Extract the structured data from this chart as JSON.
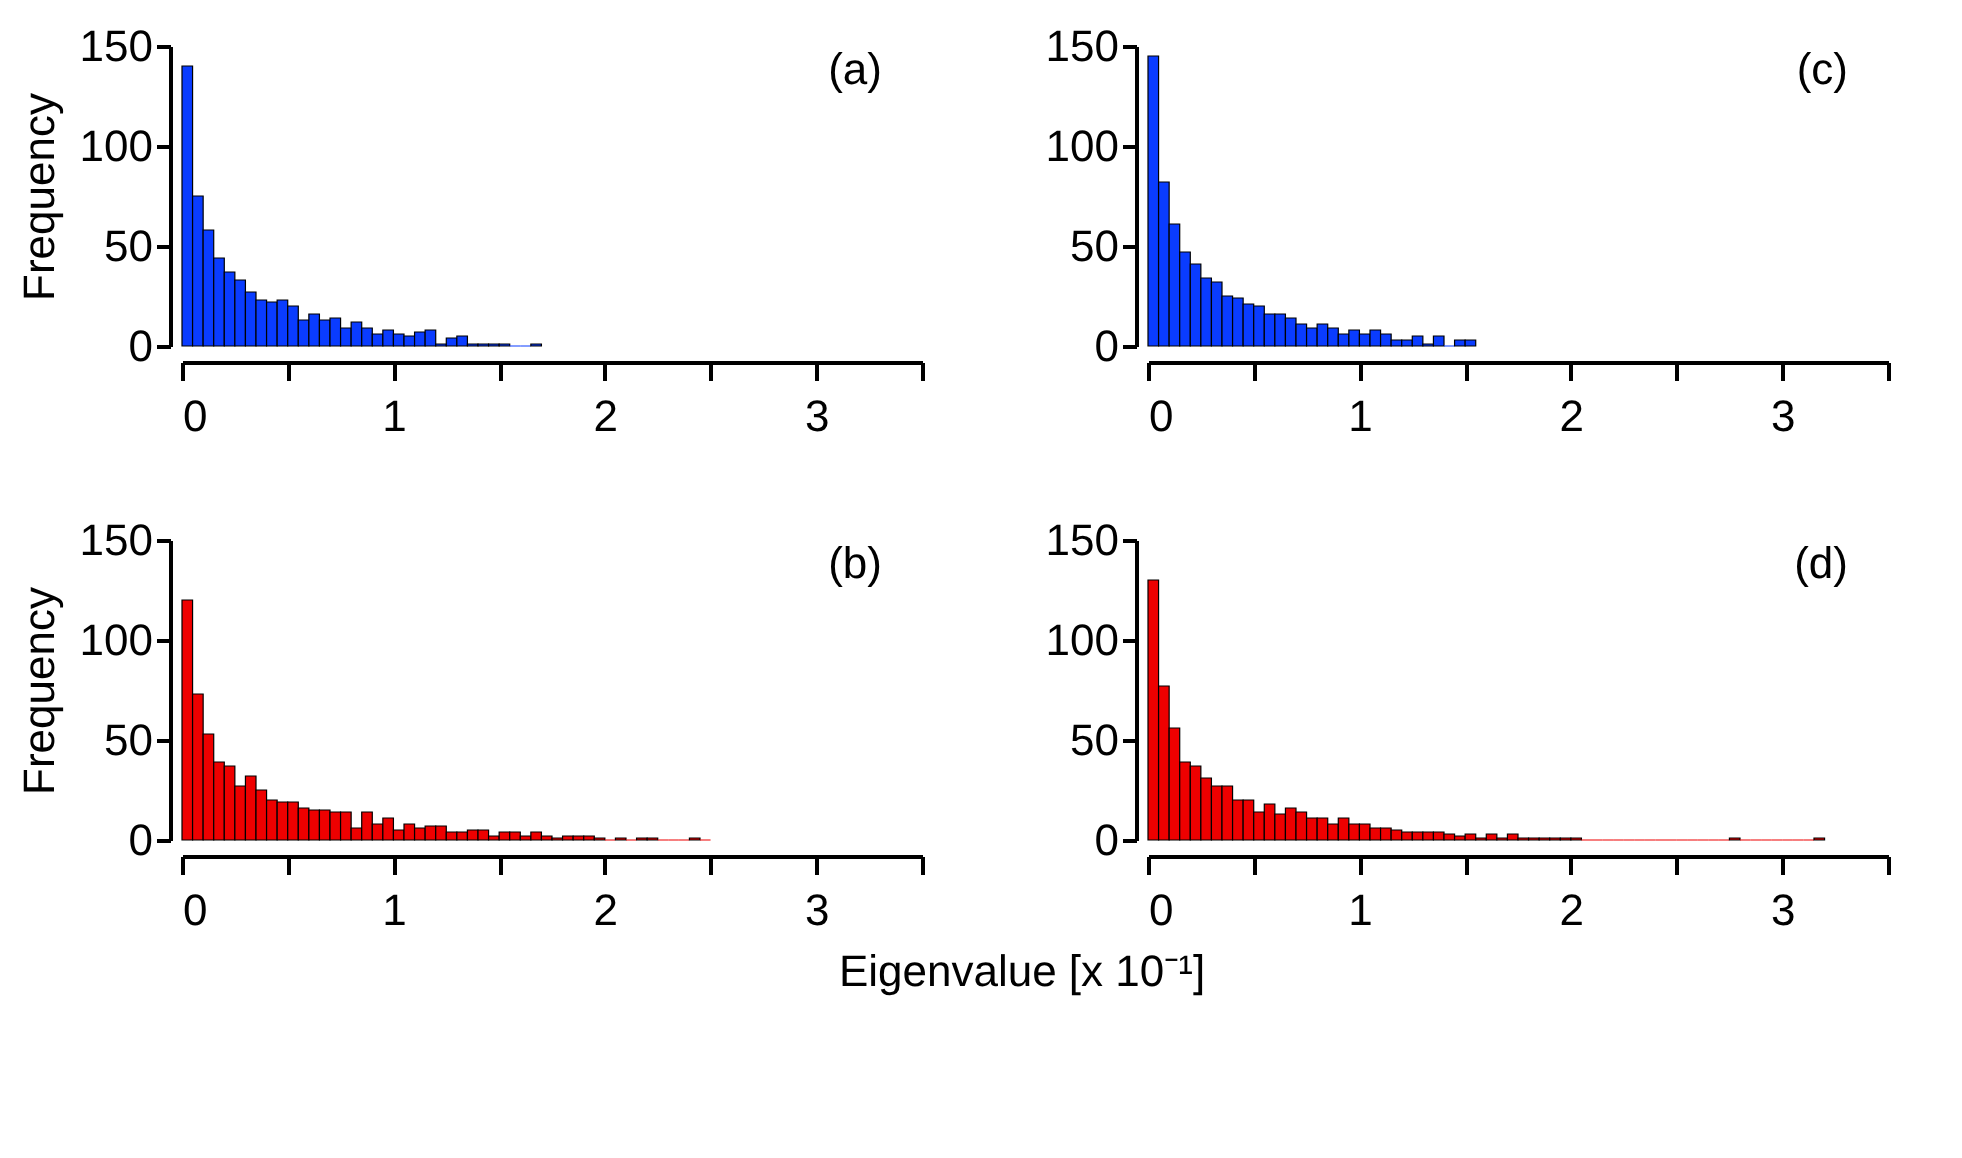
{
  "chart_data": [
    {
      "type": "histogram",
      "ylabel": "Frequency",
      "annotations": [
        "(a)"
      ],
      "color": "#0a3cff",
      "grid": false,
      "bins": [
        0,
        0.05,
        0.1,
        0.15,
        0.2,
        0.25,
        0.3,
        0.35,
        0.4,
        0.45,
        0.5,
        0.55,
        0.6,
        0.65,
        0.7,
        0.75,
        0.8,
        0.85,
        0.9,
        0.95,
        1,
        1.05,
        1.1,
        1.15,
        1.2,
        1.25,
        1.3,
        1.35,
        1.4,
        1.45,
        1.5,
        1.55,
        1.6,
        1.65,
        1.7
      ],
      "values": [
        140,
        75,
        58,
        44,
        37,
        33,
        27,
        23,
        22,
        23,
        20,
        13,
        16,
        13,
        14,
        9,
        12,
        9,
        6,
        8,
        6,
        5,
        7,
        8,
        1,
        4,
        5,
        1,
        1,
        1,
        1,
        0,
        0,
        1
      ],
      "xlim": [
        0,
        3.5
      ],
      "xticks": [
        0,
        {
          "value": 0.5,
          "label": null
        },
        1,
        {
          "value": 1.5,
          "label": null
        },
        2,
        {
          "value": 2.5,
          "label": null
        },
        3,
        {
          "value": 3.5,
          "label": null
        }
      ],
      "ylim": [
        0,
        150
      ],
      "yticks": [
        0,
        50,
        100,
        150
      ]
    },
    {
      "type": "histogram",
      "ylabel": "Frequency",
      "xlabel": "Eigenvalue [x 10⁻¹]",
      "annotations": [
        "(b)"
      ],
      "color": "#ee0000",
      "grid": false,
      "bins": [
        0,
        0.05,
        0.1,
        0.15,
        0.2,
        0.25,
        0.3,
        0.35,
        0.4,
        0.45,
        0.5,
        0.55,
        0.6,
        0.65,
        0.7,
        0.75,
        0.8,
        0.85,
        0.9,
        0.95,
        1,
        1.05,
        1.1,
        1.15,
        1.2,
        1.25,
        1.3,
        1.35,
        1.4,
        1.45,
        1.5,
        1.55,
        1.6,
        1.65,
        1.7,
        1.75,
        1.8,
        1.85,
        1.9,
        1.95,
        2,
        2.05,
        2.1,
        2.15,
        2.2,
        2.25,
        2.3,
        2.35,
        2.4,
        2.45,
        2.5
      ],
      "values": [
        120,
        73,
        53,
        39,
        37,
        27,
        32,
        25,
        20,
        19,
        19,
        16,
        15,
        15,
        14,
        14,
        6,
        14,
        8,
        11,
        5,
        8,
        6,
        7,
        7,
        4,
        4,
        5,
        5,
        2,
        4,
        4,
        2,
        4,
        2,
        1,
        2,
        2,
        2,
        1,
        0,
        1,
        0,
        1,
        1,
        0,
        0,
        0,
        1,
        0
      ],
      "xlim": [
        0,
        3.5
      ],
      "xticks": [
        0,
        {
          "value": 0.5,
          "label": null
        },
        1,
        {
          "value": 1.5,
          "label": null
        },
        2,
        {
          "value": 2.5,
          "label": null
        },
        3,
        {
          "value": 3.5,
          "label": null
        }
      ],
      "ylim": [
        0,
        150
      ],
      "yticks": [
        0,
        50,
        100,
        150
      ]
    },
    {
      "type": "histogram",
      "annotations": [
        "(c)"
      ],
      "color": "#0a3cff",
      "grid": false,
      "bins": [
        0,
        0.05,
        0.1,
        0.15,
        0.2,
        0.25,
        0.3,
        0.35,
        0.4,
        0.45,
        0.5,
        0.55,
        0.6,
        0.65,
        0.7,
        0.75,
        0.8,
        0.85,
        0.9,
        0.95,
        1,
        1.05,
        1.1,
        1.15,
        1.2,
        1.25,
        1.3,
        1.35,
        1.4,
        1.45,
        1.5,
        1.55
      ],
      "values": [
        145,
        82,
        61,
        47,
        41,
        34,
        32,
        25,
        24,
        21,
        20,
        16,
        16,
        14,
        11,
        9,
        11,
        9,
        6,
        8,
        6,
        8,
        6,
        3,
        3,
        5,
        1,
        5,
        0,
        3,
        3
      ],
      "xlim": [
        0,
        3.5
      ],
      "xticks": [
        0,
        {
          "value": 0.5,
          "label": null
        },
        1,
        {
          "value": 1.5,
          "label": null
        },
        2,
        {
          "value": 2.5,
          "label": null
        },
        3,
        {
          "value": 3.5,
          "label": null
        }
      ],
      "ylim": [
        0,
        150
      ],
      "yticks": [
        0,
        50,
        100,
        150
      ]
    },
    {
      "type": "histogram",
      "annotations": [
        "(d)"
      ],
      "color": "#ee0000",
      "grid": false,
      "bins": [
        0,
        0.05,
        0.1,
        0.15,
        0.2,
        0.25,
        0.3,
        0.35,
        0.4,
        0.45,
        0.5,
        0.55,
        0.6,
        0.65,
        0.7,
        0.75,
        0.8,
        0.85,
        0.9,
        0.95,
        1,
        1.05,
        1.1,
        1.15,
        1.2,
        1.25,
        1.3,
        1.35,
        1.4,
        1.45,
        1.5,
        1.55,
        1.6,
        1.65,
        1.7,
        1.75,
        1.8,
        1.85,
        1.9,
        1.95,
        2,
        2.05,
        2.1,
        2.15,
        2.2,
        2.25,
        2.3,
        2.35,
        2.4,
        2.45,
        2.5,
        2.55,
        2.6,
        2.65,
        2.7,
        2.75,
        2.8,
        2.85,
        2.9,
        2.95,
        3,
        3.05,
        3.1,
        3.15,
        3.2
      ],
      "values": [
        130,
        77,
        56,
        39,
        37,
        31,
        27,
        27,
        20,
        20,
        14,
        18,
        13,
        16,
        14,
        11,
        11,
        8,
        11,
        8,
        8,
        6,
        6,
        5,
        4,
        4,
        4,
        4,
        3,
        2,
        3,
        1,
        3,
        1,
        3,
        1,
        1,
        1,
        1,
        1,
        1,
        0,
        0,
        0,
        0,
        0,
        0,
        0,
        0,
        0,
        0,
        0,
        0,
        0,
        0,
        1,
        0,
        0,
        0,
        0,
        0,
        0,
        0,
        1
      ],
      "xlim": [
        0,
        3.5
      ],
      "xticks": [
        0,
        {
          "value": 0.5,
          "label": null
        },
        1,
        {
          "value": 1.5,
          "label": null
        },
        2,
        {
          "value": 2.5,
          "label": null
        },
        3,
        {
          "value": 3.5,
          "label": null
        }
      ],
      "ylim": [
        0,
        150
      ],
      "yticks": [
        0,
        50,
        100,
        150
      ]
    }
  ]
}
